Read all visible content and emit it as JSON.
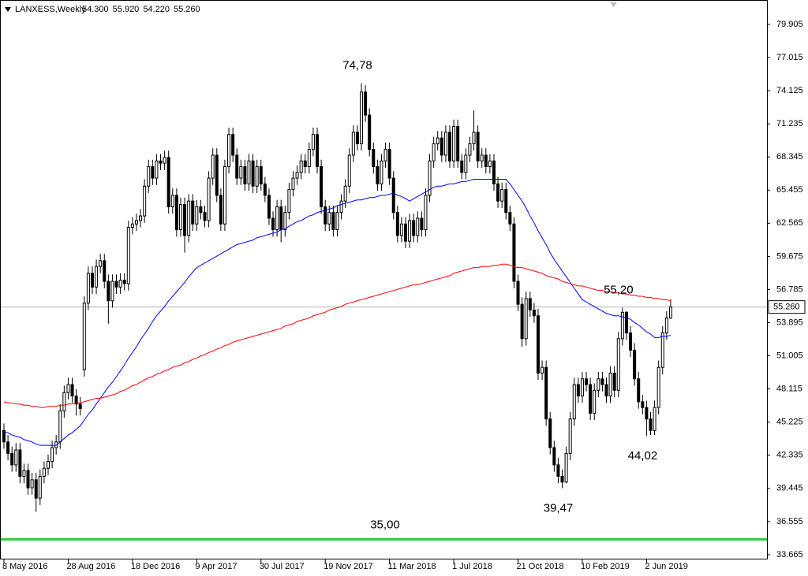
{
  "chart_data": {
    "type": "candlestick",
    "symbol": "LANXESS,Weekly",
    "header_values": [
      {
        "value": 54.3,
        "label": "54.300"
      },
      {
        "value": 55.92,
        "label": "55.920"
      },
      {
        "value": 54.22,
        "label": "54.220"
      },
      {
        "value": 55.26,
        "label": "55.260"
      }
    ],
    "categories": [
      "8 May 2016",
      null,
      null,
      null,
      null,
      null,
      null,
      null,
      null,
      null,
      null,
      null,
      null,
      null,
      null,
      null,
      "28 Aug 2016",
      null,
      null,
      null,
      null,
      null,
      null,
      null,
      null,
      null,
      null,
      null,
      null,
      null,
      null,
      null,
      "18 Dec 2016",
      null,
      null,
      null,
      null,
      null,
      null,
      null,
      null,
      null,
      null,
      null,
      null,
      null,
      null,
      null,
      "9 Apr 2017",
      null,
      null,
      null,
      null,
      null,
      null,
      null,
      null,
      null,
      null,
      null,
      null,
      null,
      null,
      null,
      "30 Jul 2017",
      null,
      null,
      null,
      null,
      null,
      null,
      null,
      null,
      null,
      null,
      null,
      null,
      null,
      null,
      null,
      "19 Nov 2017",
      null,
      null,
      null,
      null,
      null,
      null,
      null,
      null,
      null,
      null,
      null,
      null,
      null,
      null,
      null,
      "11 Mar 2018",
      null,
      null,
      null,
      null,
      null,
      null,
      null,
      null,
      null,
      null,
      null,
      null,
      null,
      null,
      null,
      "1 Jul 2018",
      null,
      null,
      null,
      null,
      null,
      null,
      null,
      null,
      null,
      null,
      null,
      null,
      null,
      null,
      null,
      "21 Oct 2018",
      null,
      null,
      null,
      null,
      null,
      null,
      null,
      null,
      null,
      null,
      null,
      null,
      null,
      null,
      null,
      "10 Feb 2019",
      null,
      null,
      null,
      null,
      null,
      null,
      null,
      null,
      null,
      null,
      null,
      null,
      null,
      null,
      null,
      "2 Jun 2019",
      null,
      null,
      null,
      null,
      null,
      null
    ],
    "open": [
      44.5,
      43.5,
      42.5,
      41.5,
      42.8,
      40.5,
      41.0,
      39.5,
      40.2,
      38.6,
      40.5,
      41.2,
      41.8,
      43.0,
      43.5,
      46.2,
      47.8,
      48.5,
      47.5,
      46.8,
      49.8,
      55.6,
      58.2,
      57.0,
      58.8,
      59.3,
      57.5,
      55.8,
      57.5,
      57.0,
      57.6,
      57.3,
      62.2,
      62.5,
      62.8,
      63.2,
      65.8,
      67.5,
      66.5,
      68.0,
      67.8,
      68.3,
      64.0,
      65.0,
      62.0,
      64.2,
      61.5,
      64.5,
      62.5,
      64.0,
      63.5,
      62.8,
      66.5,
      68.5,
      65.0,
      62.5,
      67.5,
      70.3,
      68.5,
      66.5,
      67.5,
      66.0,
      68.0,
      65.8,
      67.5,
      66.0,
      65.0,
      63.0,
      62.0,
      64.0,
      62.0,
      63.5,
      65.5,
      66.5,
      67.0,
      68.0,
      67.5,
      69.0,
      70.3,
      67.5,
      64.0,
      62.5,
      63.5,
      62.0,
      63.5,
      64.5,
      65.8,
      68.5,
      70.5,
      69.5,
      74.0,
      72.0,
      69.0,
      67.5,
      66.0,
      68.0,
      69.0,
      66.5,
      63.5,
      61.5,
      62.5,
      61.0,
      62.8,
      61.5,
      63.0,
      62.0,
      65.0,
      68.0,
      69.5,
      70.0,
      68.5,
      70.5,
      68.0,
      71.0,
      68.0,
      67.0,
      68.5,
      69.5,
      70.5,
      68.0,
      68.5,
      67.5,
      68.0,
      66.0,
      64.5,
      65.5,
      63.5,
      62.5,
      57.5,
      55.5,
      52.5,
      56.0,
      55.0,
      54.5,
      49.5,
      50.0,
      45.5,
      43.0,
      41.5,
      40.5,
      40.0,
      42.5,
      45.5,
      48.5,
      47.5,
      49.0,
      48.5,
      46.0,
      48.0,
      49.0,
      48.5,
      47.5,
      49.5,
      48.0,
      52.5,
      54.8,
      53.0,
      51.5,
      49.0,
      47.0,
      46.5,
      45.5,
      44.5,
      46.5,
      50.0,
      53.0,
      54.3
    ],
    "high": [
      45.1,
      44.1,
      43.1,
      43.4,
      43.4,
      41.6,
      41.6,
      40.8,
      40.8,
      41.1,
      41.8,
      42.4,
      43.6,
      44.1,
      46.8,
      48.4,
      49.1,
      49.1,
      48.1,
      47.4,
      56.2,
      58.8,
      58.8,
      59.4,
      59.9,
      59.9,
      58.1,
      58.1,
      58.1,
      58.2,
      58.2,
      62.8,
      63.1,
      63.4,
      63.8,
      66.4,
      68.1,
      68.1,
      68.6,
      68.6,
      68.9,
      68.9,
      65.6,
      65.6,
      64.8,
      64.8,
      65.1,
      65.1,
      64.6,
      64.6,
      64.1,
      67.1,
      69.1,
      69.1,
      65.6,
      68.1,
      70.9,
      70.9,
      69.1,
      68.1,
      68.1,
      68.6,
      68.6,
      68.1,
      68.1,
      66.6,
      65.6,
      63.6,
      64.6,
      64.6,
      64.1,
      66.1,
      67.1,
      67.6,
      68.6,
      68.6,
      69.6,
      70.9,
      70.9,
      68.1,
      64.6,
      64.1,
      64.1,
      64.1,
      65.1,
      66.4,
      69.1,
      71.1,
      71.1,
      74.78,
      74.6,
      72.6,
      69.6,
      68.1,
      68.6,
      69.6,
      69.6,
      67.1,
      64.1,
      63.1,
      63.1,
      63.4,
      63.4,
      63.6,
      63.6,
      65.6,
      68.6,
      70.1,
      70.6,
      70.6,
      71.1,
      71.1,
      71.6,
      71.6,
      68.6,
      69.1,
      70.1,
      72.4,
      71.1,
      69.1,
      69.1,
      68.6,
      68.6,
      66.6,
      66.1,
      66.1,
      64.1,
      63.1,
      58.1,
      56.1,
      56.6,
      56.6,
      55.6,
      55.1,
      50.6,
      50.6,
      46.1,
      43.6,
      42.1,
      41.1,
      43.1,
      46.1,
      49.1,
      49.1,
      49.6,
      49.6,
      49.1,
      48.6,
      49.6,
      49.6,
      49.1,
      50.1,
      50.1,
      53.1,
      55.2,
      54.9,
      53.6,
      52.1,
      49.6,
      47.6,
      47.1,
      46.1,
      47.1,
      50.6,
      53.6,
      54.9,
      55.92
    ],
    "low": [
      42.9,
      41.9,
      40.9,
      40.9,
      39.9,
      39.9,
      38.9,
      38.9,
      37.4,
      38.0,
      39.9,
      40.6,
      41.2,
      42.4,
      42.9,
      45.6,
      47.2,
      46.9,
      45.8,
      45.8,
      49.2,
      55.0,
      56.4,
      56.4,
      58.2,
      56.9,
      53.8,
      55.2,
      56.4,
      56.4,
      56.7,
      56.7,
      61.6,
      61.9,
      62.2,
      62.6,
      65.2,
      65.9,
      65.9,
      67.2,
      67.2,
      63.4,
      63.4,
      61.4,
      61.4,
      60.0,
      60.9,
      61.9,
      61.9,
      62.9,
      62.2,
      62.2,
      65.9,
      64.4,
      61.9,
      61.9,
      66.9,
      67.9,
      65.9,
      65.9,
      65.4,
      65.4,
      65.2,
      65.2,
      65.4,
      64.4,
      62.4,
      61.4,
      61.4,
      60.9,
      61.4,
      62.9,
      64.9,
      65.9,
      66.4,
      66.9,
      66.9,
      68.4,
      66.9,
      63.4,
      61.9,
      61.9,
      61.4,
      61.4,
      62.9,
      63.9,
      65.2,
      67.9,
      68.9,
      68.9,
      71.4,
      68.4,
      66.9,
      65.4,
      65.4,
      67.4,
      65.9,
      62.9,
      60.9,
      60.9,
      60.4,
      60.4,
      60.9,
      60.9,
      61.4,
      61.4,
      64.4,
      67.4,
      68.9,
      67.9,
      67.9,
      67.4,
      67.4,
      67.4,
      66.4,
      66.4,
      67.9,
      68.9,
      67.4,
      67.4,
      66.9,
      66.9,
      65.4,
      63.9,
      63.9,
      62.9,
      61.9,
      56.9,
      54.9,
      51.8,
      51.9,
      54.4,
      53.9,
      48.9,
      48.9,
      44.9,
      42.4,
      40.9,
      39.9,
      39.47,
      39.9,
      41.9,
      44.9,
      46.9,
      46.9,
      47.9,
      45.4,
      45.4,
      47.4,
      47.9,
      46.9,
      46.9,
      47.4,
      47.4,
      51.9,
      52.4,
      50.9,
      48.4,
      46.4,
      45.9,
      44.02,
      44.1,
      44.1,
      45.9,
      49.4,
      52.4,
      54.22
    ],
    "close": [
      43.5,
      42.5,
      41.5,
      42.8,
      40.5,
      41.0,
      39.5,
      40.2,
      38.6,
      40.5,
      41.2,
      41.8,
      43.0,
      43.5,
      46.2,
      47.8,
      48.5,
      47.5,
      46.8,
      46.4,
      55.6,
      58.2,
      57.0,
      58.8,
      59.3,
      57.5,
      55.8,
      57.5,
      57.0,
      57.6,
      57.3,
      62.2,
      62.5,
      62.8,
      63.2,
      65.8,
      67.5,
      66.5,
      68.0,
      67.8,
      68.3,
      64.0,
      65.0,
      62.0,
      64.2,
      61.5,
      64.5,
      62.5,
      64.0,
      63.5,
      62.8,
      66.5,
      68.5,
      65.0,
      62.5,
      67.5,
      70.3,
      68.5,
      66.5,
      67.5,
      66.0,
      68.0,
      65.8,
      67.5,
      66.0,
      65.0,
      63.0,
      62.0,
      64.0,
      62.0,
      63.5,
      65.5,
      66.5,
      67.0,
      68.0,
      67.5,
      69.0,
      70.3,
      67.5,
      64.0,
      62.5,
      63.5,
      62.0,
      63.5,
      64.5,
      65.8,
      68.5,
      70.5,
      69.5,
      74.0,
      72.0,
      69.0,
      67.5,
      66.0,
      68.0,
      69.0,
      66.5,
      63.5,
      61.5,
      62.5,
      61.0,
      62.8,
      61.5,
      63.0,
      62.0,
      65.0,
      68.0,
      69.5,
      70.0,
      68.5,
      70.5,
      68.0,
      71.0,
      68.0,
      67.0,
      68.5,
      69.5,
      70.5,
      68.0,
      68.5,
      67.5,
      68.0,
      66.0,
      64.5,
      65.5,
      63.5,
      62.5,
      57.5,
      55.5,
      52.5,
      56.0,
      55.0,
      54.5,
      49.5,
      50.0,
      45.5,
      43.0,
      41.5,
      40.5,
      40.0,
      42.5,
      45.5,
      48.5,
      47.5,
      49.0,
      48.5,
      46.0,
      48.0,
      49.0,
      48.5,
      47.5,
      49.5,
      48.0,
      52.5,
      54.8,
      53.0,
      51.5,
      49.0,
      47.0,
      46.5,
      45.5,
      44.5,
      46.5,
      50.0,
      53.0,
      54.3,
      55.26
    ],
    "lines": [
      {
        "color": "#0000ff",
        "values": [
          44.4,
          44.3,
          44.1,
          44.0,
          43.9,
          43.7,
          43.6,
          43.5,
          43.3,
          43.2,
          43.2,
          43.2,
          43.2,
          43.2,
          43.5,
          43.8,
          44.1,
          44.3,
          44.6,
          44.9,
          45.4,
          45.9,
          46.3,
          46.8,
          47.3,
          47.8,
          48.3,
          48.7,
          49.2,
          49.7,
          50.2,
          50.8,
          51.3,
          51.8,
          52.4,
          52.9,
          53.4,
          54.0,
          54.5,
          54.9,
          55.3,
          55.8,
          56.2,
          56.6,
          57.0,
          57.4,
          57.9,
          58.3,
          58.7,
          58.9,
          59.1,
          59.3,
          59.5,
          59.7,
          59.9,
          60.1,
          60.3,
          60.5,
          60.7,
          60.8,
          60.9,
          61.0,
          61.1,
          61.3,
          61.4,
          61.5,
          61.6,
          61.7,
          61.8,
          62.0,
          62.1,
          62.3,
          62.5,
          62.7,
          62.8,
          63.0,
          63.2,
          63.3,
          63.5,
          63.6,
          63.7,
          63.8,
          63.9,
          64.1,
          64.2,
          64.3,
          64.4,
          64.5,
          64.6,
          64.6,
          64.7,
          64.8,
          64.8,
          64.9,
          65.0,
          65.0,
          65.1,
          65.2,
          65.0,
          64.9,
          64.7,
          64.5,
          64.7,
          64.9,
          65.1,
          65.3,
          65.5,
          65.7,
          65.8,
          65.8,
          65.9,
          66.0,
          66.0,
          66.1,
          66.2,
          66.2,
          66.3,
          66.4,
          66.4,
          66.4,
          66.4,
          66.4,
          66.4,
          66.4,
          66.4,
          66.4,
          66.0,
          65.5,
          65.0,
          64.5,
          63.9,
          63.2,
          62.6,
          61.9,
          61.3,
          60.7,
          60.0,
          59.4,
          58.9,
          58.4,
          57.9,
          57.4,
          56.9,
          56.4,
          55.9,
          55.7,
          55.5,
          55.3,
          55.1,
          54.9,
          54.7,
          54.6,
          54.5,
          54.5,
          54.4,
          54.3,
          54.2,
          53.9,
          53.7,
          53.4,
          53.1,
          52.9,
          52.6,
          52.6,
          52.7,
          52.7,
          52.8
        ]
      },
      {
        "color": "#ff0000",
        "values": [
          47.0,
          46.9,
          46.9,
          46.8,
          46.8,
          46.7,
          46.7,
          46.6,
          46.6,
          46.5,
          46.5,
          46.6,
          46.6,
          46.6,
          46.7,
          46.7,
          46.8,
          46.8,
          46.9,
          46.9,
          47.0,
          47.1,
          47.2,
          47.3,
          47.3,
          47.4,
          47.5,
          47.6,
          47.7,
          47.9,
          48.0,
          48.2,
          48.4,
          48.5,
          48.7,
          48.9,
          49.1,
          49.2,
          49.4,
          49.5,
          49.7,
          49.8,
          50.0,
          50.1,
          50.2,
          50.4,
          50.5,
          50.7,
          50.8,
          51.0,
          51.1,
          51.3,
          51.4,
          51.6,
          51.7,
          51.9,
          52.0,
          52.2,
          52.3,
          52.4,
          52.5,
          52.6,
          52.7,
          52.8,
          52.9,
          53.0,
          53.1,
          53.2,
          53.3,
          53.4,
          53.6,
          53.7,
          53.8,
          54.0,
          54.1,
          54.2,
          54.3,
          54.5,
          54.6,
          54.7,
          54.8,
          55.0,
          55.1,
          55.2,
          55.3,
          55.5,
          55.6,
          55.7,
          55.8,
          55.9,
          56.0,
          56.1,
          56.2,
          56.3,
          56.4,
          56.5,
          56.6,
          56.7,
          56.8,
          56.9,
          57.0,
          57.1,
          57.2,
          57.2,
          57.3,
          57.4,
          57.5,
          57.6,
          57.7,
          57.8,
          57.9,
          58.0,
          58.2,
          58.3,
          58.4,
          58.5,
          58.6,
          58.7,
          58.7,
          58.8,
          58.8,
          58.8,
          58.9,
          58.9,
          59.0,
          59.0,
          58.9,
          58.8,
          58.7,
          58.7,
          58.6,
          58.5,
          58.4,
          58.3,
          58.2,
          58.0,
          57.9,
          57.8,
          57.7,
          57.5,
          57.4,
          57.3,
          57.2,
          57.1,
          57.1,
          57.0,
          56.9,
          56.8,
          56.7,
          56.7,
          56.6,
          56.6,
          56.5,
          56.5,
          56.4,
          56.4,
          56.3,
          56.3,
          56.2,
          56.2,
          56.1,
          56.1,
          56.0,
          56.0,
          55.9,
          55.9,
          55.8
        ]
      }
    ],
    "annotations": [
      {
        "value": 74.78,
        "label": "74,78",
        "color": "#1a1aff"
      },
      {
        "value": 55.2,
        "label": "55,20",
        "color": "#1a1aff"
      },
      {
        "value": 44.02,
        "label": "44,02",
        "color": "#1a1aff"
      },
      {
        "value": 39.47,
        "label": "39,47",
        "color": "#1a1aff"
      }
    ],
    "levels": [
      {
        "value": 35,
        "label": "35,00",
        "color": "#33cc33"
      }
    ],
    "last_price": {
      "value": 55.26,
      "label": "55.260"
    },
    "ylim": [
      33.25,
      82.03
    ],
    "yticks": [
      33.665,
      36.555,
      39.445,
      42.335,
      45.225,
      48.115,
      51.005,
      53.895,
      56.785,
      59.675,
      62.565,
      65.455,
      68.345,
      71.235,
      74.125,
      77.015,
      79.905
    ],
    "grid": false
  }
}
